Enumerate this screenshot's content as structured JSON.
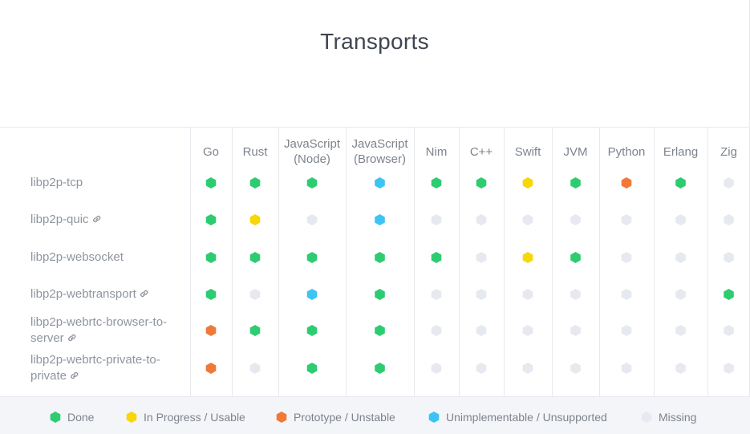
{
  "page": {
    "title": "Transports"
  },
  "colors": {
    "done": "#2ecc71",
    "in_progress": "#f7d60a",
    "prototype": "#f0793a",
    "unimplementable": "#3cc4f5",
    "missing": "#e6e9ef"
  },
  "columns": [
    "Go",
    "Rust",
    "JavaScript\n(Node)",
    "JavaScript\n(Browser)",
    "Nim",
    "C++",
    "Swift",
    "JVM",
    "Python",
    "Erlang",
    "Zig"
  ],
  "rows": [
    {
      "label": "libp2p-tcp",
      "has_link_icon": false,
      "status": [
        "done",
        "done",
        "done",
        "unimplementable",
        "done",
        "done",
        "in_progress",
        "done",
        "prototype",
        "done",
        "missing"
      ]
    },
    {
      "label": "libp2p-quic",
      "has_link_icon": true,
      "status": [
        "done",
        "in_progress",
        "missing",
        "unimplementable",
        "missing",
        "missing",
        "missing",
        "missing",
        "missing",
        "missing",
        "missing"
      ]
    },
    {
      "label": "libp2p-websocket",
      "has_link_icon": false,
      "status": [
        "done",
        "done",
        "done",
        "done",
        "done",
        "missing",
        "in_progress",
        "done",
        "missing",
        "missing",
        "missing"
      ]
    },
    {
      "label": "libp2p-webtransport",
      "has_link_icon": true,
      "status": [
        "done",
        "missing",
        "unimplementable",
        "done",
        "missing",
        "missing",
        "missing",
        "missing",
        "missing",
        "missing",
        "done"
      ]
    },
    {
      "label": "libp2p-webrtc-browser-to-server",
      "label_line1": "libp2p-webrtc-browser-to-",
      "label_line2": "server",
      "has_link_icon": true,
      "status": [
        "prototype",
        "done",
        "done",
        "done",
        "missing",
        "missing",
        "missing",
        "missing",
        "missing",
        "missing",
        "missing"
      ]
    },
    {
      "label": "libp2p-webrtc-private-to-private",
      "label_line1": "libp2p-webrtc-private-to-",
      "label_line2": "private",
      "has_link_icon": true,
      "status": [
        "prototype",
        "missing",
        "done",
        "done",
        "missing",
        "missing",
        "missing",
        "missing",
        "missing",
        "missing",
        "missing"
      ]
    }
  ],
  "legend": [
    {
      "key": "done",
      "label": "Done"
    },
    {
      "key": "in_progress",
      "label": "In Progress / Usable"
    },
    {
      "key": "prototype",
      "label": "Prototype / Unstable"
    },
    {
      "key": "unimplementable",
      "label": "Unimplementable / Unsupported"
    },
    {
      "key": "missing",
      "label": "Missing"
    }
  ],
  "icons": {
    "link": "link-icon",
    "status": "hexagon-icon"
  }
}
